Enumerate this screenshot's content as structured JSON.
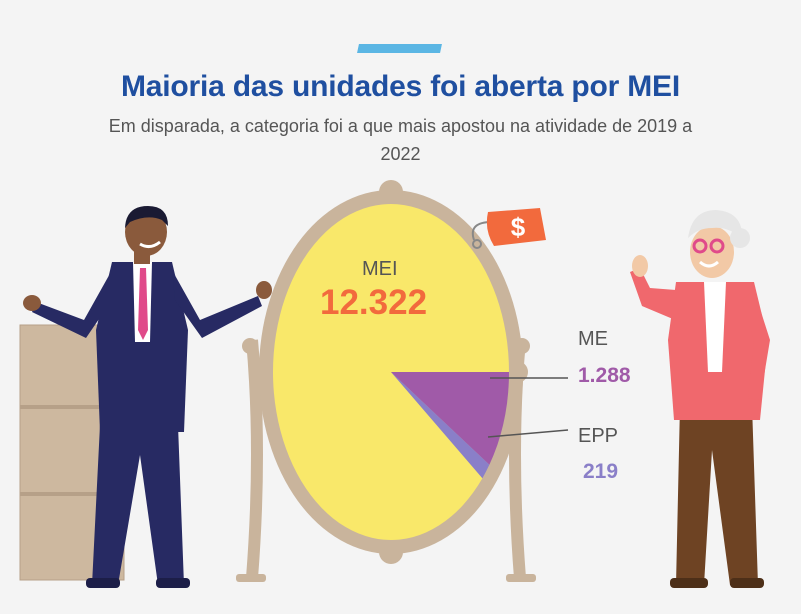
{
  "header": {
    "title": "Maioria das unidades foi aberta por MEI",
    "subtitle": "Em disparada, a categoria foi a que mais apostou na atividade de 2019 a 2022"
  },
  "colors": {
    "title": "#1f4fa0",
    "accent": "#5bb6e4",
    "mirror_glass": "#f9e86a",
    "mirror_frame": "#c9b49c",
    "mei": "#f26a3d",
    "me": "#a05aa8",
    "epp": "#8a7fc8",
    "price_tag": "#f26a3d"
  },
  "icons": [
    "dollar-price-tag-icon"
  ],
  "chart_data": {
    "type": "pie",
    "title": "Maioria das unidades foi aberta por MEI",
    "subtitle": "Em disparada, a categoria foi a que mais apostou na atividade de 2019 a 2022",
    "slices": [
      {
        "label": "MEI",
        "value": 12322,
        "value_label": "12.322"
      },
      {
        "label": "ME",
        "value": 1288,
        "value_label": "1.288"
      },
      {
        "label": "EPP",
        "value": 219,
        "value_label": "219"
      }
    ],
    "legend": "none"
  }
}
